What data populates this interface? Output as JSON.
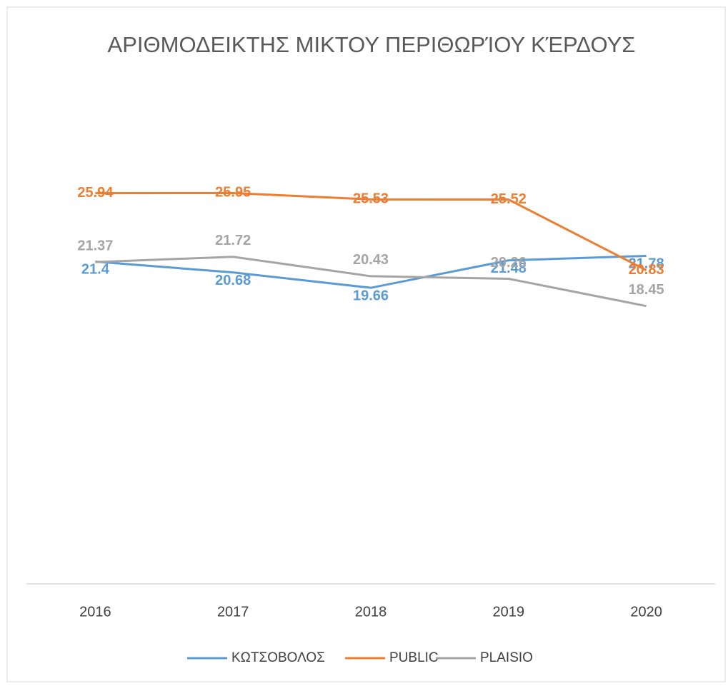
{
  "chart_data": {
    "type": "line",
    "title": "ΑΡΙΘΜΟΔΕΙΚΤΗΣ ΜΙΚΤΟΥ ΠΕΡΙΘΩΡΊΟΥ ΚΈΡΔΟΥΣ",
    "categories": [
      "2016",
      "2017",
      "2018",
      "2019",
      "2020"
    ],
    "series": [
      {
        "name": "ΚΩΤΣΟΒΟΛΟΣ",
        "color": "#5b9bd5",
        "values": [
          21.4,
          20.68,
          19.66,
          21.48,
          21.78
        ]
      },
      {
        "name": "PUBLIC",
        "color": "#ed7d31",
        "values": [
          25.94,
          25.95,
          25.53,
          25.52,
          20.83
        ]
      },
      {
        "name": "PLAISIO",
        "color": "#a5a5a5",
        "values": [
          21.37,
          21.72,
          20.43,
          20.26,
          18.45
        ]
      }
    ],
    "ylim": [
      0,
      30
    ],
    "legend": "bottom"
  }
}
